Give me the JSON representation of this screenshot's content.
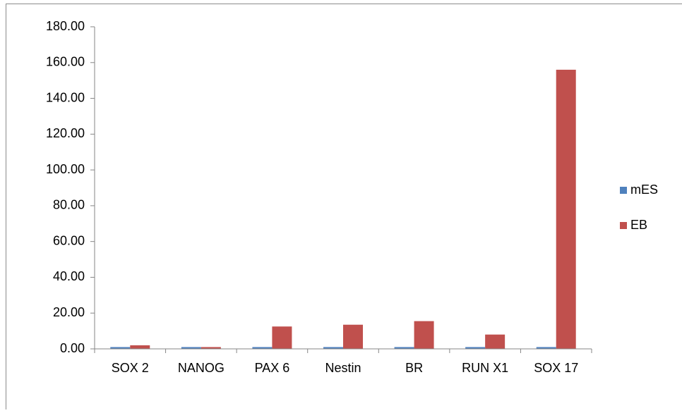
{
  "chart_data": {
    "type": "bar",
    "categories": [
      "SOX 2",
      "NANOG",
      "PAX 6",
      "Nestin",
      "BR",
      "RUN X1",
      "SOX 17"
    ],
    "series": [
      {
        "name": "mES",
        "color": "#4f81bd",
        "values": [
          1,
          1,
          1,
          1,
          1,
          1,
          1
        ]
      },
      {
        "name": "EB",
        "color": "#c0504d",
        "values": [
          2,
          1,
          12.5,
          13.5,
          15.5,
          8,
          156
        ]
      }
    ],
    "ylim": [
      0,
      180
    ],
    "yticks": [
      {
        "value": 0,
        "label": "0.00"
      },
      {
        "value": 20,
        "label": "20.00"
      },
      {
        "value": 40,
        "label": "40.00"
      },
      {
        "value": 60,
        "label": "60.00"
      },
      {
        "value": 80,
        "label": "80.00"
      },
      {
        "value": 100,
        "label": "100.00"
      },
      {
        "value": 120,
        "label": "120.00"
      },
      {
        "value": 140,
        "label": "140.00"
      },
      {
        "value": 160,
        "label": "160.00"
      },
      {
        "value": 180,
        "label": "180.00"
      }
    ],
    "legend": "right"
  }
}
